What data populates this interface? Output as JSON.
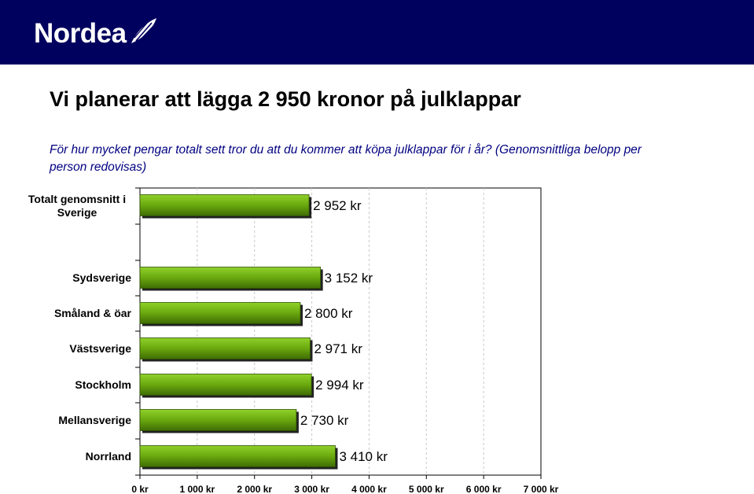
{
  "brand": {
    "name": "Nordea",
    "bar_color": "#00005e",
    "accent": "#ffffff"
  },
  "slide": {
    "title": "Vi planerar att lägga 2 950 kronor på julklappar",
    "question": "För hur mycket pengar totalt sett tror du att du kommer att köpa julklappar för i år? (Genomsnittliga belopp per person redovisas)"
  },
  "chart_data": {
    "type": "bar",
    "orientation": "horizontal",
    "categories": [
      "Totalt genomsnitt i Sverige",
      "Sydsverige",
      "Småland & öar",
      "Västsverige",
      "Stockholm",
      "Mellansverige",
      "Norrland"
    ],
    "values": [
      2952,
      3152,
      2800,
      2971,
      2994,
      2730,
      3410
    ],
    "value_labels": [
      "2 952 kr",
      "3 152 kr",
      "2 800 kr",
      "2 971 kr",
      "2 994 kr",
      "2 730 kr",
      "3 410 kr"
    ],
    "xlim": [
      0,
      7000
    ],
    "x_ticks": [
      0,
      1000,
      2000,
      3000,
      4000,
      5000,
      6000,
      7000
    ],
    "x_tick_labels": [
      "0 kr",
      "1 000 kr",
      "2 000 kr",
      "3 000 kr",
      "4 000 kr",
      "5 000 kr",
      "6 000 kr",
      "7 000 kr"
    ],
    "bar_color": "#6aa80e",
    "grid": true,
    "legend": "none"
  }
}
